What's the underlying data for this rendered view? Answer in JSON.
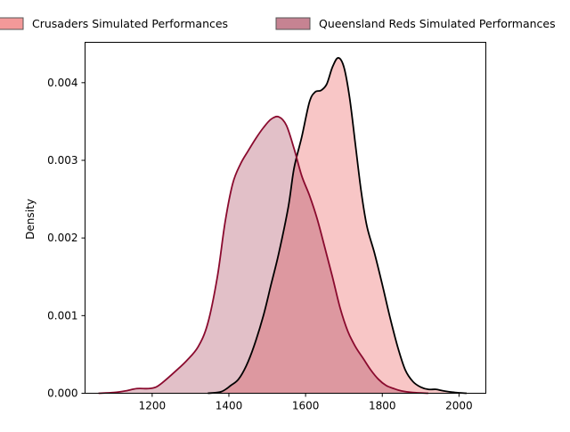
{
  "chart_data": {
    "type": "area",
    "ylabel": "Density",
    "xlabel": "",
    "xlim": [
      1025,
      2070
    ],
    "ylim": [
      0,
      0.00452
    ],
    "x_ticks": [
      1200,
      1400,
      1600,
      1800,
      2000
    ],
    "y_ticks": [
      0,
      0.001,
      0.002,
      0.003,
      0.004
    ],
    "x_tick_labels": [
      "1200",
      "1400",
      "1600",
      "1800",
      "2000"
    ],
    "y_tick_labels": [
      "0.000",
      "0.001",
      "0.002",
      "0.003",
      "0.004"
    ],
    "legend_position": "top",
    "series": [
      {
        "name": "Crusaders Simulated Performances",
        "fill_color": "#f08080",
        "fill_opacity": 0.45,
        "line_color": "#000000",
        "points": [
          [
            1345,
            0
          ],
          [
            1380,
            2e-05
          ],
          [
            1405,
            0.0001
          ],
          [
            1425,
            0.00018
          ],
          [
            1445,
            0.00035
          ],
          [
            1465,
            0.0006
          ],
          [
            1490,
            0.001
          ],
          [
            1510,
            0.0014
          ],
          [
            1530,
            0.0018
          ],
          [
            1555,
            0.0024
          ],
          [
            1570,
            0.0029
          ],
          [
            1590,
            0.0033
          ],
          [
            1610,
            0.00375
          ],
          [
            1625,
            0.00388
          ],
          [
            1640,
            0.0039
          ],
          [
            1655,
            0.00398
          ],
          [
            1670,
            0.0042
          ],
          [
            1685,
            0.00432
          ],
          [
            1700,
            0.0042
          ],
          [
            1715,
            0.0038
          ],
          [
            1730,
            0.0032
          ],
          [
            1745,
            0.0026
          ],
          [
            1760,
            0.00215
          ],
          [
            1780,
            0.0018
          ],
          [
            1800,
            0.0014
          ],
          [
            1820,
            0.00098
          ],
          [
            1840,
            0.0006
          ],
          [
            1860,
            0.0003
          ],
          [
            1880,
            0.00015
          ],
          [
            1900,
            8e-05
          ],
          [
            1920,
            5e-05
          ],
          [
            1940,
            5e-05
          ],
          [
            1960,
            3e-05
          ],
          [
            1990,
            1e-05
          ],
          [
            2020,
            0
          ]
        ]
      },
      {
        "name": "Queensland Reds Simulated Performances",
        "fill_color": "#a0304a",
        "fill_opacity": 0.3,
        "line_color": "#8a0a2e",
        "points": [
          [
            1060,
            0
          ],
          [
            1100,
            1e-05
          ],
          [
            1130,
            3e-05
          ],
          [
            1160,
            6e-05
          ],
          [
            1190,
            6e-05
          ],
          [
            1210,
            8e-05
          ],
          [
            1230,
            0.00015
          ],
          [
            1260,
            0.00028
          ],
          [
            1290,
            0.00042
          ],
          [
            1320,
            0.0006
          ],
          [
            1345,
            0.0009
          ],
          [
            1370,
            0.0015
          ],
          [
            1390,
            0.0022
          ],
          [
            1410,
            0.0027
          ],
          [
            1430,
            0.00295
          ],
          [
            1450,
            0.00312
          ],
          [
            1470,
            0.00328
          ],
          [
            1490,
            0.00342
          ],
          [
            1510,
            0.00353
          ],
          [
            1530,
            0.00356
          ],
          [
            1550,
            0.00345
          ],
          [
            1570,
            0.00315
          ],
          [
            1590,
            0.0028
          ],
          [
            1610,
            0.00255
          ],
          [
            1630,
            0.00225
          ],
          [
            1650,
            0.00188
          ],
          [
            1670,
            0.0015
          ],
          [
            1690,
            0.0011
          ],
          [
            1710,
            0.0008
          ],
          [
            1730,
            0.0006
          ],
          [
            1750,
            0.00045
          ],
          [
            1770,
            0.0003
          ],
          [
            1790,
            0.00018
          ],
          [
            1810,
            0.0001
          ],
          [
            1830,
            6e-05
          ],
          [
            1850,
            3e-05
          ],
          [
            1880,
            1e-05
          ],
          [
            1920,
            0
          ]
        ]
      }
    ]
  }
}
